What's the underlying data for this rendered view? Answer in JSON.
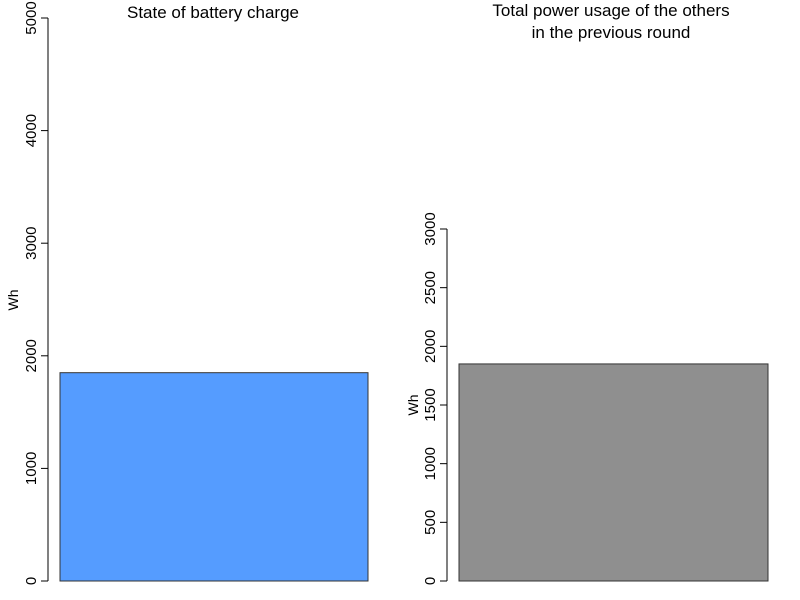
{
  "chart_data": [
    {
      "type": "bar",
      "title": "State of battery charge",
      "title_lines": [
        "State of battery charge"
      ],
      "ylabel": "Wh",
      "ylim": [
        0,
        5000
      ],
      "yticks": [
        0,
        1000,
        2000,
        3000,
        4000,
        5000
      ],
      "ytick_labels": [
        "0",
        "1000",
        "2000",
        "3000",
        "4000",
        "5000"
      ],
      "categories": [
        ""
      ],
      "values": [
        1850
      ],
      "bar_color": "#559cff",
      "grid": false,
      "legend": "none"
    },
    {
      "type": "bar",
      "title": "Total power usage of the others in the previous round",
      "title_lines": [
        "Total power usage of the others",
        "in the previous round"
      ],
      "ylabel": "Wh",
      "ylim": [
        0,
        3000
      ],
      "yticks": [
        0,
        500,
        1000,
        1500,
        2000,
        2500,
        3000
      ],
      "ytick_labels": [
        "0",
        "500",
        "1000",
        "1500",
        "2000",
        "2500",
        "3000"
      ],
      "categories": [
        ""
      ],
      "values": [
        1850
      ],
      "bar_color": "#8f8f8f",
      "grid": false,
      "legend": "none"
    }
  ]
}
